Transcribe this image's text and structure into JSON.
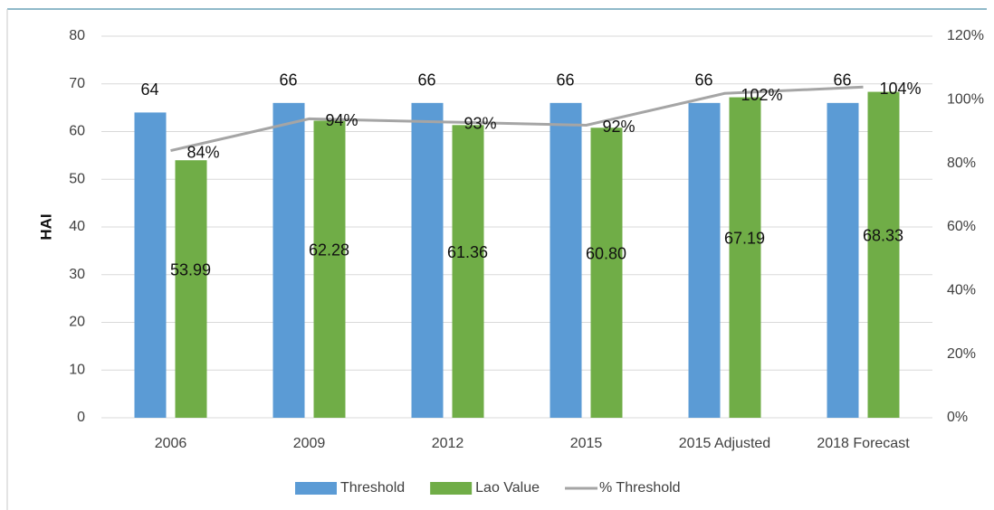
{
  "chart_data": {
    "type": "bar",
    "y_label": "HAI",
    "categories": [
      "2006",
      "2009",
      "2012",
      "2015",
      "2015 Adjusted",
      "2018 Forecast"
    ],
    "series": [
      {
        "name": "Threshold",
        "type": "bar",
        "color": "#5b9bd5",
        "values": [
          64,
          66,
          66,
          66,
          66,
          66
        ]
      },
      {
        "name": "Lao Value",
        "type": "bar",
        "color": "#70ad47",
        "values": [
          53.99,
          62.28,
          61.36,
          60.8,
          67.19,
          68.33
        ],
        "value_labels": [
          "53.99",
          "62.28",
          "61.36",
          "60.80",
          "67.19",
          "68.33"
        ]
      },
      {
        "name": "% Threshold",
        "type": "line",
        "axis": "y2",
        "color": "#a5a5a5",
        "values": [
          84,
          94,
          93,
          92,
          102,
          104
        ],
        "value_labels": [
          "84%",
          "94%",
          "93%",
          "92%",
          "102%",
          "104%"
        ]
      }
    ],
    "ylim": [
      0,
      80
    ],
    "yticks": [
      0,
      10,
      20,
      30,
      40,
      50,
      60,
      70,
      80
    ],
    "y2lim": [
      0,
      120
    ],
    "y2ticks": [
      {
        "value": 0,
        "label": "0%"
      },
      {
        "value": 20,
        "label": "20%"
      },
      {
        "value": 40,
        "label": "40%"
      },
      {
        "value": 60,
        "label": "60%"
      },
      {
        "value": 80,
        "label": "80%"
      },
      {
        "value": 100,
        "label": "100%"
      },
      {
        "value": 120,
        "label": "120%"
      }
    ],
    "grid": true,
    "legend": "bottom"
  }
}
